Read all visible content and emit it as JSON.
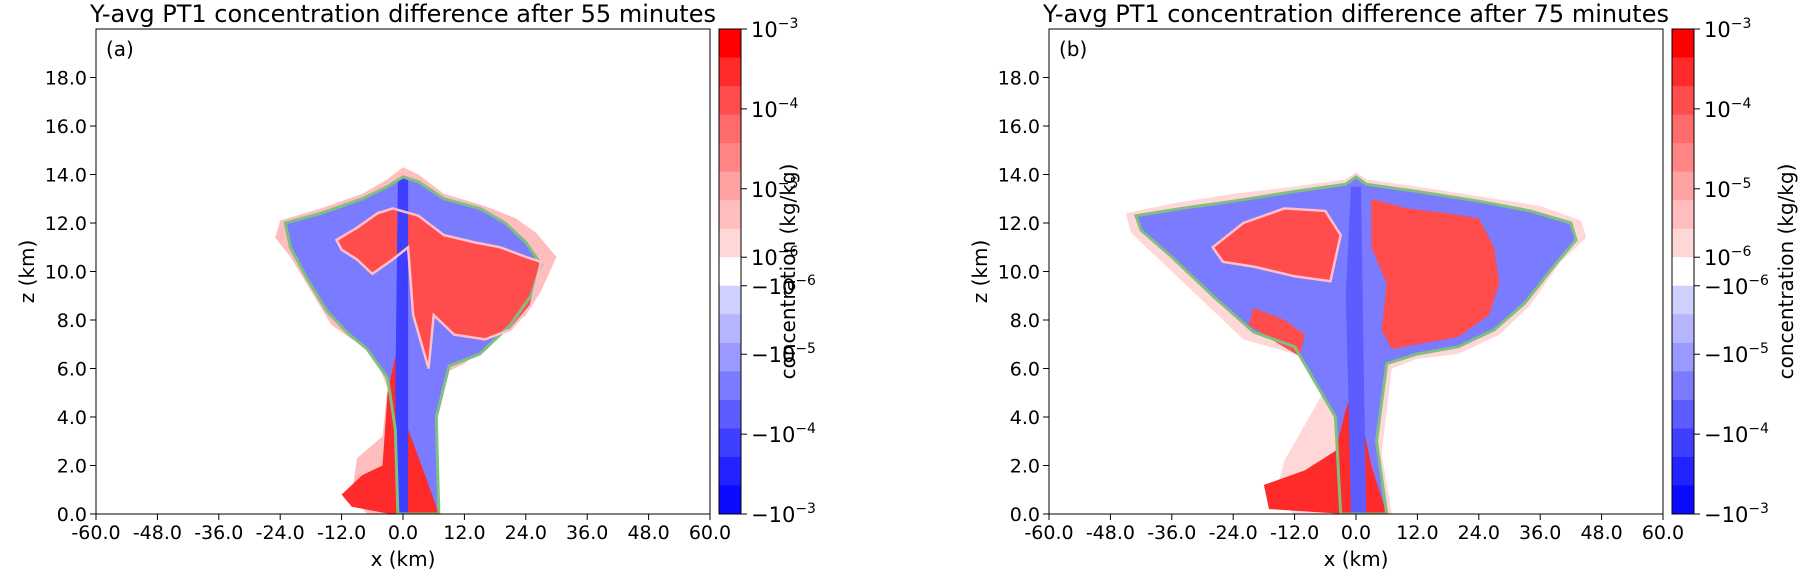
{
  "chart_data": [
    {
      "type": "heatmap",
      "title": "Y-avg PT1  concentration difference after 55 minutes",
      "panel_label": "(a)",
      "xlabel": "x (km)",
      "ylabel": "z (km)",
      "xlim": [
        -60,
        60
      ],
      "ylim": [
        0,
        20
      ],
      "x_ticks": [
        "-60.0",
        "-48.0",
        "-36.0",
        "-24.0",
        "-12.0",
        "0.0",
        "12.0",
        "24.0",
        "36.0",
        "48.0",
        "60.0"
      ],
      "y_ticks": [
        "0.0",
        "2.0",
        "4.0",
        "6.0",
        "8.0",
        "10.0",
        "12.0",
        "14.0",
        "16.0",
        "18.0"
      ],
      "colorbar": {
        "label": "concentration (kg/kg)",
        "scale": "symmetric log",
        "tick_labels": [
          {
            "base": "10",
            "exp": "−3"
          },
          {
            "base": "10",
            "exp": "−4"
          },
          {
            "base": "10",
            "exp": "−5"
          },
          {
            "base": "10",
            "exp": "−6"
          },
          {
            "base": "−10",
            "exp": "−6"
          },
          {
            "base": "−10",
            "exp": "−5"
          },
          {
            "base": "−10",
            "exp": "−4"
          },
          {
            "base": "−10",
            "exp": "−3"
          }
        ],
        "colors": [
          "#ff0000",
          "#ff2a2a",
          "#ff4c4c",
          "#ff6a6a",
          "#ff8585",
          "#ffa2a2",
          "#ffbdbd",
          "#ffd7d7",
          "#ffffff",
          "#d0d0ff",
          "#b6b6ff",
          "#9999ff",
          "#7b7bff",
          "#5c5cff",
          "#3f3fff",
          "#2323ff",
          "#0a0aff"
        ]
      },
      "contour_colors": [
        "#7fbf7f",
        "#ffc0cb"
      ],
      "layers": [
        {
          "color": "#ffbdbd",
          "points": [
            [
              -24,
              12.1
            ],
            [
              -16,
              12.6
            ],
            [
              -8,
              13.2
            ],
            [
              -3,
              13.8
            ],
            [
              0,
              14.3
            ],
            [
              3,
              14
            ],
            [
              8,
              13.2
            ],
            [
              16,
              12.7
            ],
            [
              22,
              12.2
            ],
            [
              26,
              11.6
            ],
            [
              30,
              10.6
            ],
            [
              27,
              9.2
            ],
            [
              24,
              8.2
            ],
            [
              18,
              7.2
            ],
            [
              12,
              6.2
            ],
            [
              8,
              5.8
            ],
            [
              6.5,
              4
            ],
            [
              7,
              0
            ],
            [
              -7,
              0
            ],
            [
              -10,
              0.8
            ],
            [
              -9,
              2.3
            ],
            [
              -4,
              3.2
            ],
            [
              -3,
              5.2
            ],
            [
              -6,
              6.8
            ],
            [
              -10,
              7.2
            ],
            [
              -14,
              7.8
            ],
            [
              -18,
              9.2
            ],
            [
              -22,
              10.6
            ],
            [
              -25,
              11.4
            ]
          ]
        },
        {
          "color": "#7b7bff",
          "points": [
            [
              -23,
              12
            ],
            [
              -16,
              12.4
            ],
            [
              -8,
              13
            ],
            [
              -3,
              13.5
            ],
            [
              0,
              13.9
            ],
            [
              3,
              13.7
            ],
            [
              8,
              13
            ],
            [
              15,
              12.6
            ],
            [
              20,
              12
            ],
            [
              24,
              11.2
            ],
            [
              27,
              10.3
            ],
            [
              25,
              9
            ],
            [
              21,
              7.8
            ],
            [
              15,
              6.6
            ],
            [
              9,
              6.1
            ],
            [
              6.5,
              4
            ],
            [
              7,
              0
            ],
            [
              -1,
              0
            ],
            [
              -1.5,
              3.5
            ],
            [
              -3,
              5.6
            ],
            [
              -7,
              6.8
            ],
            [
              -11,
              7.5
            ],
            [
              -15,
              8.4
            ],
            [
              -19,
              9.8
            ],
            [
              -22,
              11
            ]
          ]
        },
        {
          "color": "#ff4c4c",
          "points": [
            [
              -13,
              11.3
            ],
            [
              -9,
              11.8
            ],
            [
              -5,
              12.4
            ],
            [
              -2,
              12.6
            ],
            [
              3,
              12.3
            ],
            [
              8,
              11.5
            ],
            [
              14,
              11.2
            ],
            [
              19,
              11
            ],
            [
              24,
              10.6
            ],
            [
              27,
              10.4
            ],
            [
              25,
              8.6
            ],
            [
              21,
              7.6
            ],
            [
              16,
              7.2
            ],
            [
              10,
              7.4
            ],
            [
              6,
              8.2
            ],
            [
              5,
              6
            ],
            [
              2,
              8.2
            ],
            [
              1,
              11
            ],
            [
              -2,
              10.5
            ],
            [
              -6,
              9.9
            ],
            [
              -9,
              10.5
            ],
            [
              -12,
              10.9
            ]
          ]
        },
        {
          "color": "#ff2a2a",
          "points": [
            [
              -2.5,
              0
            ],
            [
              7,
              0
            ],
            [
              5,
              1.2
            ],
            [
              1,
              3.5
            ],
            [
              -1,
              5.5
            ],
            [
              -1.5,
              6.5
            ],
            [
              -3,
              5
            ],
            [
              -4,
              2
            ],
            [
              -8,
              1.6
            ],
            [
              -12,
              0.8
            ],
            [
              -10,
              0.3
            ]
          ]
        },
        {
          "color": "#3f3fff",
          "points": [
            [
              -1,
              13.8
            ],
            [
              1,
              13.9
            ],
            [
              1,
              0
            ],
            [
              -1,
              0
            ],
            [
              -1.5,
              5
            ]
          ]
        }
      ]
    },
    {
      "type": "heatmap",
      "title": "Y-avg PT1  concentration difference after 75 minutes",
      "panel_label": "(b)",
      "xlabel": "x (km)",
      "ylabel": "z (km)",
      "xlim": [
        -60,
        60
      ],
      "ylim": [
        0,
        20
      ],
      "x_ticks": [
        "-60.0",
        "-48.0",
        "-36.0",
        "-24.0",
        "-12.0",
        "0.0",
        "12.0",
        "24.0",
        "36.0",
        "48.0",
        "60.0"
      ],
      "y_ticks": [
        "0.0",
        "2.0",
        "4.0",
        "6.0",
        "8.0",
        "10.0",
        "12.0",
        "14.0",
        "16.0",
        "18.0"
      ],
      "colorbar": {
        "label": "concentration (kg/kg)",
        "scale": "symmetric log",
        "tick_labels": [
          {
            "base": "10",
            "exp": "−3"
          },
          {
            "base": "10",
            "exp": "−4"
          },
          {
            "base": "10",
            "exp": "−5"
          },
          {
            "base": "10",
            "exp": "−6"
          },
          {
            "base": "−10",
            "exp": "−6"
          },
          {
            "base": "−10",
            "exp": "−5"
          },
          {
            "base": "−10",
            "exp": "−4"
          },
          {
            "base": "−10",
            "exp": "−3"
          }
        ],
        "colors": [
          "#ff0000",
          "#ff2a2a",
          "#ff4c4c",
          "#ff6a6a",
          "#ff8585",
          "#ffa2a2",
          "#ffbdbd",
          "#ffd7d7",
          "#ffffff",
          "#d0d0ff",
          "#b6b6ff",
          "#9999ff",
          "#7b7bff",
          "#5c5cff",
          "#3f3fff",
          "#2323ff",
          "#0a0aff"
        ]
      },
      "contour_colors": [
        "#7fbf7f",
        "#ffc0cb"
      ],
      "layers": [
        {
          "color": "#ffd7d7",
          "points": [
            [
              -45,
              12.4
            ],
            [
              -36,
              12.8
            ],
            [
              -24,
              13.2
            ],
            [
              -12,
              13.5
            ],
            [
              -2,
              13.8
            ],
            [
              0,
              14.1
            ],
            [
              2,
              13.8
            ],
            [
              12,
              13.5
            ],
            [
              24,
              13.1
            ],
            [
              36,
              12.7
            ],
            [
              44,
              12.1
            ],
            [
              45,
              11.4
            ],
            [
              40,
              10.4
            ],
            [
              34,
              8.6
            ],
            [
              28,
              7.4
            ],
            [
              20,
              6.6
            ],
            [
              12,
              6.4
            ],
            [
              7,
              6
            ],
            [
              5,
              2.5
            ],
            [
              7,
              0
            ],
            [
              -12,
              0
            ],
            [
              -16,
              0.6
            ],
            [
              -14,
              2.2
            ],
            [
              -7,
              4.8
            ],
            [
              -4,
              5.8
            ],
            [
              -12,
              6.6
            ],
            [
              -22,
              7.2
            ],
            [
              -30,
              8.8
            ],
            [
              -38,
              10.4
            ],
            [
              -44,
              11.6
            ]
          ]
        },
        {
          "color": "#7b7bff",
          "points": [
            [
              -43,
              12.3
            ],
            [
              -34,
              12.6
            ],
            [
              -24,
              12.9
            ],
            [
              -12,
              13.3
            ],
            [
              -2,
              13.6
            ],
            [
              0,
              13.9
            ],
            [
              2,
              13.6
            ],
            [
              12,
              13.3
            ],
            [
              24,
              12.9
            ],
            [
              34,
              12.5
            ],
            [
              42,
              12
            ],
            [
              43,
              11.3
            ],
            [
              39,
              10.3
            ],
            [
              33,
              8.7
            ],
            [
              27,
              7.6
            ],
            [
              20,
              6.9
            ],
            [
              12,
              6.6
            ],
            [
              6,
              6.2
            ],
            [
              4,
              3
            ],
            [
              6,
              0
            ],
            [
              -3,
              0
            ],
            [
              -4,
              4
            ],
            [
              -12,
              6.9
            ],
            [
              -20,
              7.5
            ],
            [
              -28,
              9
            ],
            [
              -36,
              10.6
            ],
            [
              -42,
              11.7
            ]
          ]
        },
        {
          "color": "#ff4c4c",
          "points": [
            [
              -28,
              11
            ],
            [
              -22,
              12
            ],
            [
              -14,
              12.6
            ],
            [
              -6,
              12.5
            ],
            [
              -3,
              11.5
            ],
            [
              -5,
              9.6
            ],
            [
              -12,
              9.8
            ],
            [
              -20,
              10.2
            ],
            [
              -26,
              10.4
            ]
          ]
        },
        {
          "color": "#ff4c4c",
          "points": [
            [
              3,
              13
            ],
            [
              10,
              12.6
            ],
            [
              18,
              12.4
            ],
            [
              24,
              12.2
            ],
            [
              27,
              11
            ],
            [
              28,
              9.5
            ],
            [
              26,
              8.2
            ],
            [
              20,
              7.3
            ],
            [
              12,
              7
            ],
            [
              7,
              6.8
            ],
            [
              5,
              7.6
            ],
            [
              6,
              9.5
            ],
            [
              3,
              11
            ]
          ]
        },
        {
          "color": "#ff4c4c",
          "points": [
            [
              -20,
              8.5
            ],
            [
              -14,
              8
            ],
            [
              -10,
              7.4
            ],
            [
              -11,
              6.5
            ],
            [
              -15,
              7
            ],
            [
              -21,
              7.8
            ]
          ]
        },
        {
          "color": "#ff2a2a",
          "points": [
            [
              -2,
              0
            ],
            [
              6,
              0
            ],
            [
              3,
              2
            ],
            [
              0.5,
              4.5
            ],
            [
              0,
              5.5
            ],
            [
              -2,
              4.3
            ],
            [
              -4,
              2.6
            ],
            [
              -10,
              1.8
            ],
            [
              -18,
              1.2
            ],
            [
              -17,
              0.2
            ]
          ]
        },
        {
          "color": "#5c5cff",
          "points": [
            [
              -1,
              13.5
            ],
            [
              1,
              13.5
            ],
            [
              1.5,
              6
            ],
            [
              2,
              0
            ],
            [
              -1,
              0
            ],
            [
              -1.5,
              5
            ],
            [
              -2,
              9
            ]
          ]
        }
      ]
    }
  ]
}
